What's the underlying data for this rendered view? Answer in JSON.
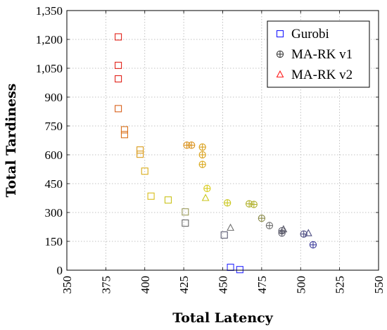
{
  "chart_data": {
    "type": "scatter",
    "xlabel": "Total Latency",
    "ylabel": "Total Tardiness",
    "xlim": [
      350,
      550
    ],
    "ylim": [
      0,
      1350
    ],
    "xticks": [
      350,
      375,
      400,
      425,
      450,
      475,
      500,
      525,
      550
    ],
    "yticks": [
      0,
      150,
      300,
      450,
      600,
      750,
      900,
      1050,
      1200,
      1350
    ],
    "xtick_labels": [
      "350",
      "375",
      "400",
      "425",
      "450",
      "475",
      "500",
      "525",
      "550"
    ],
    "ytick_labels": [
      "0",
      "150",
      "300",
      "450",
      "600",
      "750",
      "900",
      "1,050",
      "1,200",
      "1,350"
    ],
    "grid": true,
    "legend_position": "top-right",
    "colors": {
      "Gurobi": "#1a1aff",
      "MA-RK v1": "#3c3c3c",
      "MA-RK v2": "#ff1a1a"
    },
    "series": [
      {
        "name": "Gurobi",
        "marker": "square",
        "points": [
          {
            "x": 383,
            "y": 1213,
            "color": "#e2231a"
          },
          {
            "x": 383,
            "y": 1065,
            "color": "#e2231a"
          },
          {
            "x": 383,
            "y": 995,
            "color": "#e2231a"
          },
          {
            "x": 383,
            "y": 840,
            "color": "#d9601a"
          },
          {
            "x": 387,
            "y": 730,
            "color": "#d9701a"
          },
          {
            "x": 387,
            "y": 705,
            "color": "#d9701a"
          },
          {
            "x": 397,
            "y": 625,
            "color": "#d99a1a"
          },
          {
            "x": 397,
            "y": 603,
            "color": "#d99a1a"
          },
          {
            "x": 400,
            "y": 515,
            "color": "#d9ac1a"
          },
          {
            "x": 404,
            "y": 385,
            "color": "#d9bd1a"
          },
          {
            "x": 415,
            "y": 365,
            "color": "#c9c21a"
          },
          {
            "x": 426,
            "y": 303,
            "color": "#9a9a5a"
          },
          {
            "x": 426,
            "y": 245,
            "color": "#6a6a6a"
          },
          {
            "x": 451,
            "y": 183,
            "color": "#5a5a70"
          },
          {
            "x": 455,
            "y": 15,
            "color": "#2a2aff"
          },
          {
            "x": 461,
            "y": 3,
            "color": "#2a2aff"
          }
        ]
      },
      {
        "name": "MA-RK v1",
        "marker": "circle-plus",
        "points": [
          {
            "x": 427,
            "y": 650,
            "color": "#d9901a"
          },
          {
            "x": 430,
            "y": 650,
            "color": "#d9901a"
          },
          {
            "x": 437,
            "y": 640,
            "color": "#d9a01a"
          },
          {
            "x": 437,
            "y": 600,
            "color": "#d9a01a"
          },
          {
            "x": 437,
            "y": 550,
            "color": "#d9a81a"
          },
          {
            "x": 440,
            "y": 425,
            "color": "#d9cc1a"
          },
          {
            "x": 453,
            "y": 350,
            "color": "#c9c61a"
          },
          {
            "x": 467,
            "y": 345,
            "color": "#b0b02a"
          },
          {
            "x": 470,
            "y": 342,
            "color": "#b0b02a"
          },
          {
            "x": 475,
            "y": 270,
            "color": "#8a8a4a"
          },
          {
            "x": 480,
            "y": 232,
            "color": "#707070"
          },
          {
            "x": 488,
            "y": 205,
            "color": "#5a5a6a"
          },
          {
            "x": 488,
            "y": 193,
            "color": "#5a5a6a"
          },
          {
            "x": 502,
            "y": 188,
            "color": "#4a4a80"
          },
          {
            "x": 508,
            "y": 132,
            "color": "#3a3a9a"
          }
        ]
      },
      {
        "name": "MA-RK v2",
        "marker": "triangle",
        "points": [
          {
            "x": 439,
            "y": 375,
            "color": "#c9c61a"
          },
          {
            "x": 455,
            "y": 220,
            "color": "#707070"
          },
          {
            "x": 489,
            "y": 212,
            "color": "#5a5a6a"
          },
          {
            "x": 505,
            "y": 192,
            "color": "#4a4a80"
          }
        ]
      }
    ]
  }
}
